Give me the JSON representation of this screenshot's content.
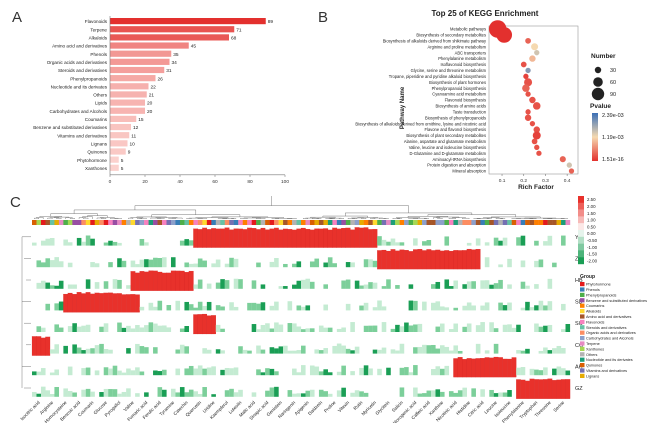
{
  "panels": {
    "a": "A",
    "b": "B",
    "c": "C"
  },
  "chart_data": [
    {
      "type": "bar",
      "orientation": "horizontal",
      "categories": [
        "Flavonoids",
        "Terpene",
        "Alkaloids",
        "Amino acid and derivatives",
        "Phenols",
        "Organic acids and derivatives",
        "Steroids and derivatives",
        "Phenylpropanoids",
        "Nucleotide and its derivates",
        "Others",
        "Lipids",
        "Carbohydrates and Alcohols",
        "Coumarins",
        "Benzene and substituted derivatives",
        "Vitamins and derivatives",
        "Lignans",
        "Quinones",
        "Phytohormone",
        "Xanthones"
      ],
      "values": [
        89,
        71,
        68,
        45,
        35,
        34,
        31,
        26,
        22,
        21,
        20,
        20,
        15,
        12,
        11,
        10,
        9,
        5,
        5
      ],
      "xticks": [
        0,
        20,
        40,
        60,
        80,
        100
      ],
      "xlim": [
        0,
        100
      ],
      "color_high": "#e3302e",
      "color_low": "#fbd1cd"
    },
    {
      "type": "scatter",
      "title": "Top 25 of KEGG Enrichment",
      "xlabel": "Rich Factor",
      "ylabel": "Pathway Name",
      "xticks": [
        0.1,
        0.2,
        0.3,
        0.4
      ],
      "xlim": [
        0.04,
        0.45
      ],
      "categories": [
        "Metabolic pathways",
        "Biosynthesis of secondary metabolites",
        "Biosynthesis of alkaloids derived from shikimate pathway",
        "Arginine and proline metabolism",
        "ABC transporters",
        "Phenylalanine metabolism",
        "Isoflavonoid biosynthesis",
        "Glycine, serine and threonine metabolism",
        "Tropane, piperidine and pyridine alkaloid biosynthesis",
        "Biosynthesis of plant hormones",
        "Phenylpropanoid biosynthesis",
        "Cyanoamino acid metabolism",
        "Flavonoid biosynthesis",
        "Biosynthesis of amino acids",
        "Taste transduction",
        "Biosynthesis of phenylpropanoids",
        "Biosynthesis of alkaloids derived from ornithine, lysine and nicotinic acid",
        "Flavone and flavonol biosynthesis",
        "Biosynthesis of plant secondary metabolites",
        "Alanine, aspartate and glutamate metabolism",
        "Valine, leucine and isoleucine biosynthesis",
        "D-Glutamine and D-glutamate metabolism",
        "Aminoacyl-tRNA biosynthesis",
        "Protein digestion and absorption",
        "Mineral absorption"
      ],
      "x": [
        0.08,
        0.11,
        0.22,
        0.25,
        0.26,
        0.24,
        0.2,
        0.22,
        0.21,
        0.22,
        0.21,
        0.22,
        0.24,
        0.26,
        0.22,
        0.22,
        0.24,
        0.26,
        0.26,
        0.25,
        0.26,
        0.27,
        0.38,
        0.41,
        0.42
      ],
      "sizes": [
        92,
        70,
        4,
        8,
        3,
        6,
        4,
        3,
        3,
        12,
        10,
        3,
        6,
        10,
        3,
        6,
        3,
        6,
        12,
        4,
        3,
        3,
        5,
        3,
        3
      ],
      "pvalue_level": [
        1,
        1,
        0.85,
        0.5,
        0.4,
        0.6,
        0.9,
        0.2,
        0.95,
        0.9,
        0.85,
        0.9,
        0.9,
        0.9,
        0.9,
        0.9,
        0.9,
        0.9,
        0.95,
        0.9,
        0.9,
        0.9,
        0.85,
        0.4,
        0.85
      ],
      "legend": {
        "size_title": "Number",
        "size_labels": [
          "30",
          "60",
          "90"
        ],
        "color_title": "Pvalue",
        "color_labels": [
          "2.39e-03",
          "1.19e-03",
          "1.51e-16"
        ],
        "colors": [
          "#3b6fb6",
          "#f5d9b0",
          "#e3302e"
        ]
      }
    },
    {
      "type": "heatmap",
      "rows": [
        "YH",
        "ZJ",
        "HB",
        "SD",
        "SC",
        "CQ",
        "AH",
        "GZ"
      ],
      "columns": 120,
      "scale_labels": [
        "2.50",
        "2.00",
        "1.50",
        "1.00",
        "0.50",
        "0.00",
        "-0.50",
        "-1.00",
        "-1.50",
        "-2.00"
      ],
      "high_blocks": [
        [
          0,
          36,
          77
        ],
        [
          1,
          77,
          100
        ],
        [
          2,
          22,
          36
        ],
        [
          3,
          7,
          24
        ],
        [
          4,
          36,
          41
        ],
        [
          5,
          0,
          4
        ],
        [
          6,
          94,
          108
        ],
        [
          7,
          108,
          120
        ]
      ],
      "colors": {
        "high": "#e8312b",
        "low": "#1a9e55",
        "mid": "#ffffff"
      },
      "x_labels": [
        "Isocitric acid",
        "Arginine",
        "L-Homocysteine",
        "Benzoic acid",
        "Coumarin",
        "Glucose",
        "Pyrogallol",
        "Valine",
        "Fumaric acid",
        "Ferulic acid",
        "Tyramine",
        "Catechin",
        "Quercetin",
        "Uridine",
        "Kaempferol",
        "Luteolin",
        "Malic acid",
        "Sinapic acid",
        "Genistein",
        "Naringenin",
        "Apigenin",
        "Daidzein",
        "Proline",
        "Vitexin",
        "Rutin",
        "Myricetin",
        "Glycitein",
        "Salicin",
        "Chlorogenic acid",
        "Caffeic acid",
        "Xanthine",
        "Nicotinic acid",
        "Histidine",
        "Citric acid",
        "Leucine",
        "Isoleucine",
        "Phenylalanine",
        "Tryptophan",
        "Threonine",
        "Serine"
      ],
      "group_legend": {
        "title": "Group",
        "items": [
          "Phytohormone",
          "Phenols",
          "Phenylpropanoids",
          "Benzene and substituted derivatives",
          "Coumarins",
          "Alkaloids",
          "Amino acid and derivatives",
          "Flavonoids",
          "Steroids and derivatives",
          "Organic acids and derivatives",
          "Carbohydrates and Alcohols",
          "Terpene",
          "Xanthones",
          "Others",
          "Nucleotide and its derivates",
          "Quinones",
          "Vitamins and derivatives",
          "Lignans"
        ],
        "colors": [
          "#e41a1c",
          "#377eb8",
          "#4daf4a",
          "#984ea3",
          "#ff7f00",
          "#ffd92f",
          "#a65628",
          "#f781bf",
          "#66c2a5",
          "#fc8d62",
          "#8da0cb",
          "#e78ac3",
          "#a6d854",
          "#b3b3b3",
          "#1b9e77",
          "#d95f02",
          "#7570b3",
          "#e6ab02"
        ]
      }
    }
  ]
}
